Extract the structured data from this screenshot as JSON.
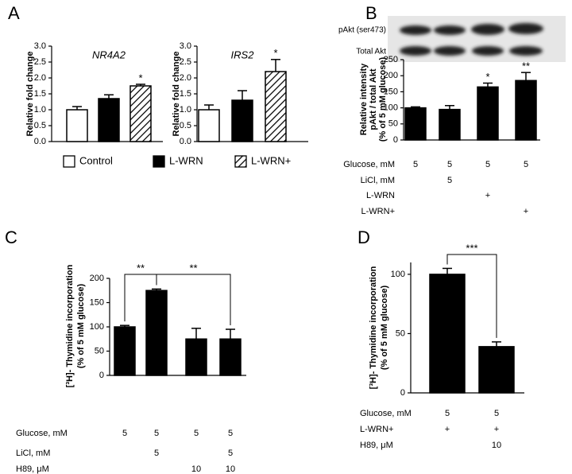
{
  "chart_data": [
    {
      "type": "bar",
      "panel": "A",
      "title": "NR4A2",
      "ylabel": [
        "Relative fold change"
      ],
      "categories": [
        "Control",
        "L-WRN",
        "L-WRN+"
      ],
      "values": [
        1.0,
        1.35,
        1.75
      ],
      "errors": [
        0.1,
        0.12,
        0.05
      ],
      "stars": [
        null,
        null,
        "*"
      ],
      "fills": [
        "white",
        "black",
        "hatched"
      ],
      "ylim": [
        0,
        3.0
      ],
      "yticks": [
        {
          "value": 0,
          "label": "0.0"
        },
        {
          "value": 0.5,
          "label": "0.5"
        },
        {
          "value": 1.0,
          "label": "1.0"
        },
        {
          "value": 1.5,
          "label": "1.5"
        },
        {
          "value": 2.0,
          "label": "2.0"
        },
        {
          "value": 2.5,
          "label": "2.5"
        },
        {
          "value": 3.0,
          "label": "3.0"
        }
      ]
    },
    {
      "type": "bar",
      "title": "IRS2",
      "ylabel": [
        "Relative fold change"
      ],
      "categories": [
        "Control",
        "L-WRN",
        "L-WRN+"
      ],
      "values": [
        1.0,
        1.3,
        2.2
      ],
      "errors": [
        0.15,
        0.3,
        0.38
      ],
      "stars": [
        null,
        null,
        "*"
      ],
      "fills": [
        "white",
        "black",
        "hatched"
      ],
      "ylim": [
        0,
        3.0
      ],
      "yticks": [
        {
          "value": 0,
          "label": "0.0"
        },
        {
          "value": 0.5,
          "label": "0.5"
        },
        {
          "value": 1.0,
          "label": "1.0"
        },
        {
          "value": 1.5,
          "label": "1.5"
        },
        {
          "value": 2.0,
          "label": "2.0"
        },
        {
          "value": 2.5,
          "label": "2.5"
        },
        {
          "value": 3.0,
          "label": "3.0"
        }
      ]
    },
    {
      "type": "bar",
      "panel": "B",
      "blot_labels": [
        "pAkt (ser473)",
        "Total Akt"
      ],
      "ylabel": [
        "Relative intensity",
        "pAkt / total Akt",
        "(% of 5 mM glucose)"
      ],
      "values": [
        100,
        95,
        165,
        185
      ],
      "errors": [
        3,
        12,
        12,
        25
      ],
      "stars": [
        null,
        null,
        "*",
        "**"
      ],
      "ylim": [
        0,
        250
      ],
      "yticks": [
        0,
        50,
        100,
        150,
        200,
        250
      ],
      "conditions": [
        {
          "label": "Glucose, mM",
          "values": [
            5,
            5,
            5,
            5
          ]
        },
        {
          "label": "LiCl, mM",
          "values": [
            null,
            5,
            null,
            null
          ]
        },
        {
          "label": "L-WRN",
          "values": [
            null,
            null,
            "+",
            null
          ]
        },
        {
          "label": "L-WRN+",
          "values": [
            null,
            null,
            null,
            "+"
          ]
        }
      ]
    },
    {
      "type": "bar",
      "panel": "C",
      "ylabel": [
        "[³H]- Thymidine incorporation",
        "(% of 5 mM glucose)"
      ],
      "values": [
        100,
        175,
        75,
        75
      ],
      "errors": [
        3,
        3,
        22,
        20
      ],
      "ylim": [
        0,
        200
      ],
      "yticks": [
        0,
        50,
        100,
        150,
        200
      ],
      "brackets": [
        {
          "from": 0,
          "to": 1,
          "text": "**"
        },
        {
          "from": 1,
          "to": 3,
          "text": "**"
        }
      ],
      "conditions": [
        {
          "label": "Glucose, mM",
          "values": [
            5,
            5,
            5,
            5
          ]
        },
        {
          "label": "LiCl, mM",
          "values": [
            null,
            5,
            null,
            5
          ]
        },
        {
          "label": "H89, μM",
          "values": [
            null,
            null,
            10,
            10
          ]
        }
      ]
    },
    {
      "type": "bar",
      "panel": "D",
      "ylabel": [
        "[³H]- Thymidine incorporation",
        "(% of 5 mM glucose)"
      ],
      "values": [
        100,
        39
      ],
      "errors": [
        5,
        4
      ],
      "ylim": [
        0,
        110
      ],
      "yticks": [
        0,
        50,
        100
      ],
      "brackets": [
        {
          "from": 0,
          "to": 1,
          "text": "***"
        }
      ],
      "conditions": [
        {
          "label": "Glucose, mM",
          "values": [
            5,
            5
          ]
        },
        {
          "label": "L-WRN+",
          "values": [
            "+",
            "+"
          ]
        },
        {
          "label": "H89, μM",
          "values": [
            null,
            10
          ]
        }
      ]
    }
  ]
}
